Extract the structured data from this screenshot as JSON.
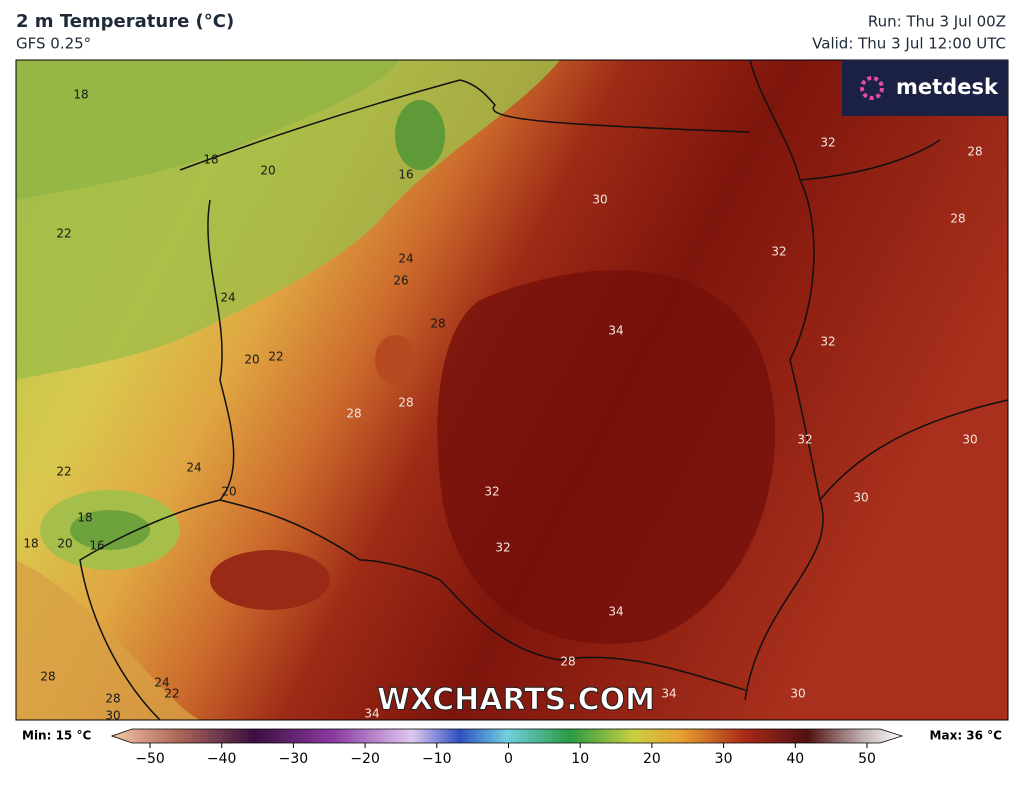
{
  "header": {
    "title": "2 m Temperature (°C)",
    "model": "GFS 0.25°",
    "run": "Run: Thu 3 Jul 00Z",
    "valid": "Valid: Thu 3 Jul 12:00 UTC"
  },
  "logo": "metdesk",
  "watermark": "WXCHARTS.COM",
  "map": {
    "contour_labels": [
      18,
      18,
      20,
      16,
      22,
      24,
      26,
      24,
      28,
      20,
      22,
      34,
      32,
      32,
      28,
      28,
      30,
      32,
      28,
      28,
      32,
      30,
      24,
      22,
      20,
      30,
      32,
      18,
      18,
      20,
      16,
      32,
      34,
      28,
      28,
      24,
      22,
      28,
      30,
      34,
      34,
      30
    ]
  },
  "colorbar": {
    "min_label": "Min: 15 °C",
    "max_label": "Max: 36 °C",
    "ticks": [
      {
        "value": -50,
        "label": "−50"
      },
      {
        "value": -40,
        "label": "−40"
      },
      {
        "value": -30,
        "label": "−30"
      },
      {
        "value": -20,
        "label": "−20"
      },
      {
        "value": -10,
        "label": "−10"
      },
      0,
      10,
      20,
      30,
      40,
      50
    ]
  }
}
